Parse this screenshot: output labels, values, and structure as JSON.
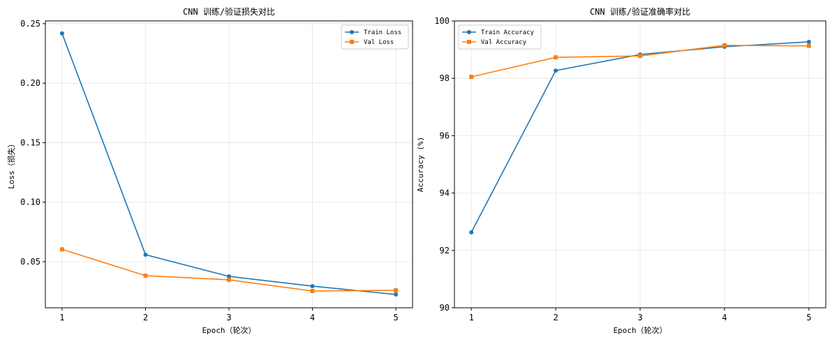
{
  "chart_data": [
    {
      "type": "line",
      "title": "CNN 训练/验证损失对比",
      "xlabel": "Epoch（轮次）",
      "ylabel": "Loss（损失）",
      "x": [
        1,
        2,
        3,
        4,
        5
      ],
      "xticks": [
        "1",
        "2",
        "3",
        "4",
        "5"
      ],
      "yticks": [
        "0.05",
        "0.10",
        "0.15",
        "0.20",
        "0.25"
      ],
      "xlim": [
        0.8,
        5.2
      ],
      "ylim": [
        0.0113,
        0.2523
      ],
      "grid": true,
      "legend": "top-right",
      "series": [
        {
          "name": "Train Loss",
          "color": "#1f77b4",
          "marker": "circle",
          "values": [
            0.2418,
            0.0559,
            0.0377,
            0.0295,
            0.0225
          ]
        },
        {
          "name": "Val Loss",
          "color": "#ff7f0e",
          "marker": "square",
          "values": [
            0.0604,
            0.0383,
            0.0348,
            0.0254,
            0.026
          ]
        }
      ]
    },
    {
      "type": "line",
      "title": "CNN 训练/验证准确率对比",
      "xlabel": "Epoch（轮次）",
      "ylabel": "Accuracy (%)",
      "x": [
        1,
        2,
        3,
        4,
        5
      ],
      "xticks": [
        "1",
        "2",
        "3",
        "4",
        "5"
      ],
      "yticks": [
        "90",
        "92",
        "94",
        "96",
        "98",
        "100"
      ],
      "xlim": [
        0.8,
        5.2
      ],
      "ylim": [
        90,
        100
      ],
      "grid": true,
      "legend": "top-left",
      "series": [
        {
          "name": "Train Accuracy",
          "color": "#1f77b4",
          "marker": "circle",
          "values": [
            92.63,
            98.27,
            98.83,
            99.1,
            99.27
          ]
        },
        {
          "name": "Val Accuracy",
          "color": "#ff7f0e",
          "marker": "square",
          "values": [
            98.05,
            98.73,
            98.78,
            99.15,
            99.13
          ]
        }
      ]
    }
  ]
}
